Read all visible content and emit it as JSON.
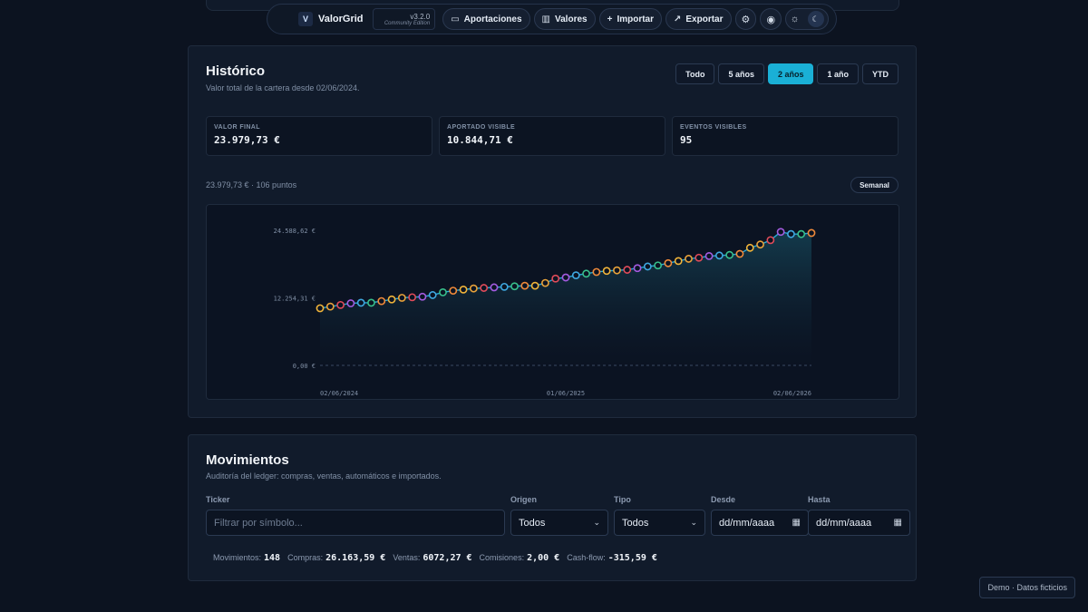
{
  "app": {
    "name": "ValorGrid",
    "logo_letter": "V",
    "version": "v3.2.0",
    "edition": "Community Edition"
  },
  "nav": {
    "aportaciones": "Aportaciones",
    "valores": "Valores",
    "importar": "Importar",
    "exportar": "Exportar"
  },
  "historico": {
    "title": "Histórico",
    "subtitle": "Valor total de la cartera desde 02/06/2024.",
    "ranges": [
      {
        "label": "Todo",
        "active": false
      },
      {
        "label": "5 años",
        "active": false
      },
      {
        "label": "2 años",
        "active": true
      },
      {
        "label": "1 año",
        "active": false
      },
      {
        "label": "YTD",
        "active": false
      }
    ],
    "stats": [
      {
        "label": "VALOR FINAL",
        "value": "23.979,73 €"
      },
      {
        "label": "APORTADO VISIBLE",
        "value": "10.844,71 €"
      },
      {
        "label": "EVENTOS VISIBLES",
        "value": "95"
      }
    ],
    "summary": "23.979,73 € · 106 puntos",
    "frequency": "Semanal"
  },
  "chart_data": {
    "type": "area",
    "title": "",
    "xlabel": "",
    "ylabel": "",
    "ylim": [
      0,
      24588.62
    ],
    "y_ticks": [
      "24.588,62 €",
      "12.254,31 €",
      "0,00 €"
    ],
    "y_tick_values": [
      24588.62,
      12254.31,
      0
    ],
    "x_ticks": [
      "02/06/2024",
      "01/06/2025",
      "02/06/2026"
    ],
    "x_range_months": [
      0,
      24
    ],
    "grid": false,
    "legend": "none",
    "line_color": "#2aa8d6",
    "marker_colors": [
      "#f2b53a",
      "#e8a23a",
      "#e14b5a",
      "#a45be0",
      "#3fa8e0",
      "#38c08c",
      "#f08a3a"
    ],
    "series": [
      {
        "x_months": [
          0,
          0.5,
          1,
          1.5,
          2,
          2.5,
          3,
          3.5,
          4,
          4.5,
          5,
          5.5,
          6,
          6.5,
          7,
          7.5,
          8,
          8.5,
          9,
          9.5,
          10,
          10.5,
          11,
          11.5,
          12,
          12.5,
          13,
          13.5,
          14,
          14.5,
          15,
          15.5,
          16,
          16.5,
          17,
          17.5,
          18,
          18.5,
          19,
          19.5,
          20,
          20.5,
          21,
          21.5,
          22,
          22.5,
          23,
          23.5,
          24
        ],
        "values": [
          10400,
          10700,
          11000,
          11300,
          11400,
          11400,
          11700,
          12000,
          12300,
          12400,
          12500,
          12800,
          13300,
          13600,
          13800,
          14000,
          14100,
          14200,
          14300,
          14400,
          14500,
          14500,
          15000,
          15800,
          16000,
          16400,
          16700,
          17000,
          17200,
          17300,
          17400,
          17700,
          18000,
          18200,
          18600,
          19000,
          19400,
          19600,
          19900,
          20000,
          20100,
          20300,
          21400,
          22000,
          22800,
          24300,
          23900,
          23900,
          24100
        ]
      }
    ]
  },
  "movimientos": {
    "title": "Movimientos",
    "subtitle": "Auditoría del ledger: compras, ventas, automáticos e importados.",
    "filters": {
      "ticker_label": "Ticker",
      "ticker_placeholder": "Filtrar por símbolo...",
      "origen_label": "Origen",
      "origen_value": "Todos",
      "tipo_label": "Tipo",
      "tipo_value": "Todos",
      "desde_label": "Desde",
      "desde_placeholder": "dd/mm/aaaa",
      "hasta_label": "Hasta",
      "hasta_placeholder": "dd/mm/aaaa"
    },
    "summary": {
      "movimientos_label": "Movimientos:",
      "movimientos_value": "148",
      "compras_label": "Compras:",
      "compras_value": "26.163,59 €",
      "ventas_label": "Ventas:",
      "ventas_value": "6072,27 €",
      "comisiones_label": "Comisiones:",
      "comisiones_value": "2,00 €",
      "cashflow_label": "Cash-flow:",
      "cashflow_value": "-315,59 €"
    }
  },
  "demo_badge": "Demo · Datos ficticios"
}
